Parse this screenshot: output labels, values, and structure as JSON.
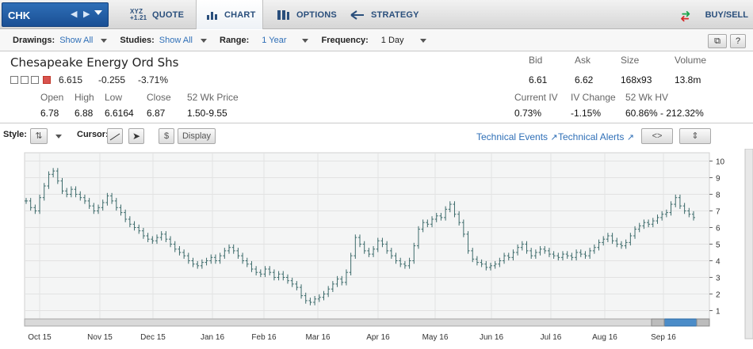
{
  "symbol": "CHK",
  "tabs": [
    {
      "label": "QUOTE",
      "icon_text": "XYZ +1.21"
    },
    {
      "label": "CHART"
    },
    {
      "label": "OPTIONS"
    },
    {
      "label": "STRATEGY"
    }
  ],
  "buy_sell_label": "BUY/SELL",
  "toolbar": {
    "drawings_label": "Drawings:",
    "drawings_value": "Show All",
    "studies_label": "Studies:",
    "studies_value": "Show All",
    "range_label": "Range:",
    "range_value": "1 Year",
    "frequency_label": "Frequency:",
    "frequency_value": "1 Day"
  },
  "quote": {
    "name": "Chesapeake Energy Ord Shs",
    "last": "6.615",
    "change": "-0.255",
    "change_pct": "-3.71%",
    "open_label": "Open",
    "open": "6.78",
    "high_label": "High",
    "high": "6.88",
    "low_label": "Low",
    "low": "6.6164",
    "close_label": "Close",
    "close": "6.87",
    "wk52_label": "52 Wk Price",
    "wk52": "1.50-9.55",
    "bid_label": "Bid",
    "bid": "6.61",
    "ask_label": "Ask",
    "ask": "6.62",
    "size_label": "Size",
    "size": "168x93",
    "volume_label": "Volume",
    "volume": "13.8m",
    "iv_label": "Current IV",
    "iv": "0.73%",
    "ivchange_label": "IV Change",
    "ivchange": "-1.15%",
    "hv_label": "52 Wk HV",
    "hv": "60.86% - 212.32%"
  },
  "chart_toolbar": {
    "style_label": "Style:",
    "cursor_label": "Cursor:",
    "dollar_label": "$",
    "display_label": "Display",
    "tech_events": "Technical Events",
    "tech_alerts": "Technical Alerts"
  },
  "chart_data": {
    "type": "ohlc",
    "x_tick_labels": [
      "Oct 15",
      "Nov 15",
      "Dec 15",
      "Jan 16",
      "Feb 16",
      "Mar 16",
      "Apr 16",
      "May 16",
      "Jun 16",
      "Jul 16",
      "Aug 16",
      "Sep 16"
    ],
    "ylim": [
      0.5,
      10.5
    ],
    "y_ticks": [
      1,
      2,
      3,
      4,
      5,
      6,
      7,
      8,
      9,
      10
    ],
    "grid": true,
    "color": "#3d6b6b",
    "close_series": [
      7.6,
      7.2,
      7.0,
      7.8,
      8.5,
      9.2,
      9.4,
      8.8,
      8.2,
      8.0,
      8.3,
      8.0,
      7.8,
      7.6,
      7.3,
      7.0,
      7.2,
      7.5,
      7.9,
      7.6,
      7.2,
      6.9,
      6.5,
      6.2,
      6.0,
      5.8,
      5.5,
      5.3,
      5.2,
      5.4,
      5.6,
      5.3,
      5.0,
      4.7,
      4.5,
      4.3,
      4.0,
      3.8,
      3.7,
      3.9,
      4.0,
      4.2,
      4.0,
      4.3,
      4.6,
      4.8,
      4.6,
      4.3,
      4.0,
      3.8,
      3.5,
      3.3,
      3.2,
      3.5,
      3.3,
      3.0,
      3.2,
      3.0,
      2.8,
      2.6,
      2.4,
      1.9,
      1.6,
      1.5,
      1.7,
      1.8,
      2.0,
      2.3,
      2.6,
      2.9,
      2.7,
      3.3,
      4.3,
      5.4,
      5.0,
      4.6,
      4.4,
      4.7,
      5.2,
      5.0,
      4.6,
      4.3,
      4.0,
      3.8,
      3.7,
      4.0,
      4.9,
      5.9,
      6.3,
      6.2,
      6.5,
      6.7,
      6.6,
      7.1,
      7.4,
      6.8,
      6.3,
      5.6,
      4.6,
      4.1,
      3.9,
      3.8,
      3.6,
      3.7,
      3.8,
      4.0,
      4.3,
      4.2,
      4.5,
      4.8,
      5.0,
      4.6,
      4.3,
      4.5,
      4.7,
      4.6,
      4.4,
      4.3,
      4.2,
      4.4,
      4.3,
      4.2,
      4.5,
      4.4,
      4.3,
      4.6,
      4.8,
      5.1,
      5.3,
      5.5,
      5.2,
      5.0,
      4.9,
      5.1,
      5.5,
      5.9,
      6.1,
      6.3,
      6.2,
      6.4,
      6.6,
      6.8,
      6.9,
      7.4,
      7.8,
      7.3,
      7.0,
      6.8,
      6.6
    ]
  },
  "scrollbar_label": "chart-scrollbar"
}
